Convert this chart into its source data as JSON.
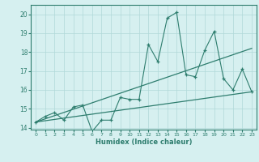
{
  "xlabel": "Humidex (Indice chaleur)",
  "ylabel": "",
  "x_data": [
    0,
    1,
    2,
    3,
    4,
    5,
    6,
    7,
    8,
    9,
    10,
    11,
    12,
    13,
    14,
    15,
    16,
    17,
    18,
    19,
    20,
    21,
    22,
    23
  ],
  "y_data": [
    14.3,
    14.6,
    14.8,
    14.4,
    15.1,
    15.2,
    13.8,
    14.4,
    14.4,
    15.6,
    15.5,
    15.5,
    18.4,
    17.5,
    19.8,
    20.1,
    16.8,
    16.7,
    18.1,
    19.1,
    16.6,
    16.0,
    17.1,
    15.9
  ],
  "trend1_x": [
    0,
    23
  ],
  "trend1_y": [
    14.3,
    18.2
  ],
  "trend2_x": [
    0,
    23
  ],
  "trend2_y": [
    14.3,
    15.9
  ],
  "line_color": "#2e7d6e",
  "bg_color": "#d6f0f0",
  "grid_color": "#b0d8d8",
  "ylim": [
    13.9,
    20.5
  ],
  "xlim": [
    -0.5,
    23.5
  ],
  "yticks": [
    14,
    15,
    16,
    17,
    18,
    19,
    20
  ],
  "xticks": [
    0,
    1,
    2,
    3,
    4,
    5,
    6,
    7,
    8,
    9,
    10,
    11,
    12,
    13,
    14,
    15,
    16,
    17,
    18,
    19,
    20,
    21,
    22,
    23
  ]
}
